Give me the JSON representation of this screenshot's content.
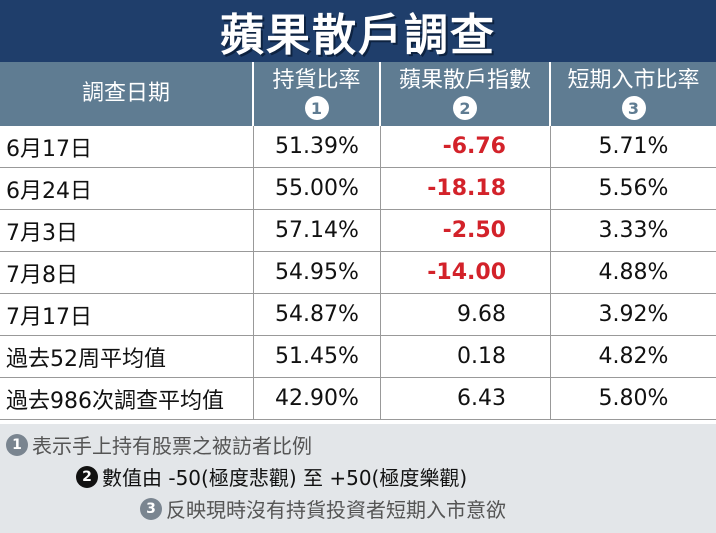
{
  "title": "蘋果散戶調查",
  "header": {
    "col0": "調查日期",
    "col1": "持貨比率",
    "col1_badge": "1",
    "col2": "蘋果散戶指數",
    "col2_badge": "2",
    "col3": "短期入市比率",
    "col3_badge": "3"
  },
  "rows": [
    {
      "date": "6月17日",
      "holding": "51.39%",
      "index": "-6.76",
      "short": "5.71%"
    },
    {
      "date": "6月24日",
      "holding": "55.00%",
      "index": "-18.18",
      "short": "5.56%"
    },
    {
      "date": "7月3日",
      "holding": "57.14%",
      "index": "-2.50",
      "short": "3.33%"
    },
    {
      "date": "7月8日",
      "holding": "54.95%",
      "index": "-14.00",
      "short": "4.88%"
    },
    {
      "date": "7月17日",
      "holding": "54.87%",
      "index": "9.68",
      "short": "3.92%"
    },
    {
      "date": "過去52周平均值",
      "holding": "51.45%",
      "index": "0.18",
      "short": "4.82%"
    },
    {
      "date": "過去986次調查平均值",
      "holding": "42.90%",
      "index": "6.43",
      "short": "5.80%"
    }
  ],
  "notes": {
    "n1_badge": "1",
    "n1": "表示手上持有股票之被訪者比例",
    "n2_badge": "2",
    "n2": "數值由 -50(極度悲觀) 至 +50(極度樂觀)",
    "n3_badge": "3",
    "n3": "反映現時沒有持貨投資者短期入市意欲"
  },
  "colors": {
    "banner": "#1f3e6b",
    "header": "#5f7c92",
    "negative": "#d3222a",
    "notes_bg": "#e3e6e9"
  }
}
